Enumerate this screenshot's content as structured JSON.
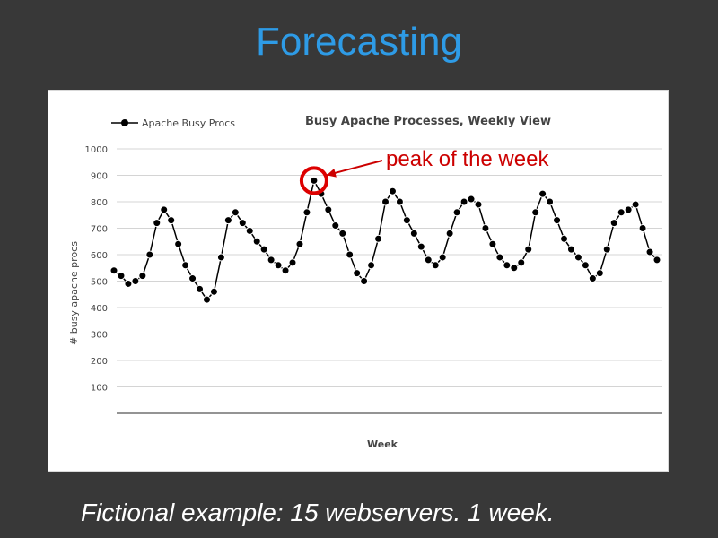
{
  "slide": {
    "title": "Forecasting",
    "caption": "Fictional example: 15 webservers. 1 week.",
    "title_color": "#2E9BE6",
    "background": "#383838"
  },
  "chart_data": {
    "type": "line",
    "title": "Busy Apache Processes, Weekly View",
    "xlabel": "Week",
    "ylabel": "# busy apache procs",
    "ylim": [
      0,
      1000
    ],
    "yticks": [
      100,
      200,
      300,
      400,
      500,
      600,
      700,
      800,
      900,
      1000
    ],
    "grid": "horizontal",
    "legend_position": "top-left",
    "series": [
      {
        "name": "Apache Busy Procs",
        "color": "#000000",
        "values": [
          540,
          520,
          490,
          500,
          520,
          600,
          720,
          770,
          730,
          640,
          560,
          510,
          470,
          430,
          460,
          590,
          730,
          760,
          720,
          690,
          650,
          620,
          580,
          560,
          540,
          570,
          640,
          760,
          880,
          830,
          770,
          710,
          680,
          600,
          530,
          500,
          560,
          660,
          800,
          840,
          800,
          730,
          680,
          630,
          580,
          560,
          590,
          680,
          760,
          800,
          810,
          790,
          700,
          640,
          590,
          560,
          550,
          570,
          620,
          760,
          830,
          800,
          730,
          660,
          620,
          590,
          560,
          510,
          530,
          620,
          720,
          760,
          770,
          790,
          700,
          610,
          580
        ]
      }
    ],
    "annotations": [
      {
        "text": "peak of the week",
        "color": "#cc0000"
      }
    ]
  }
}
